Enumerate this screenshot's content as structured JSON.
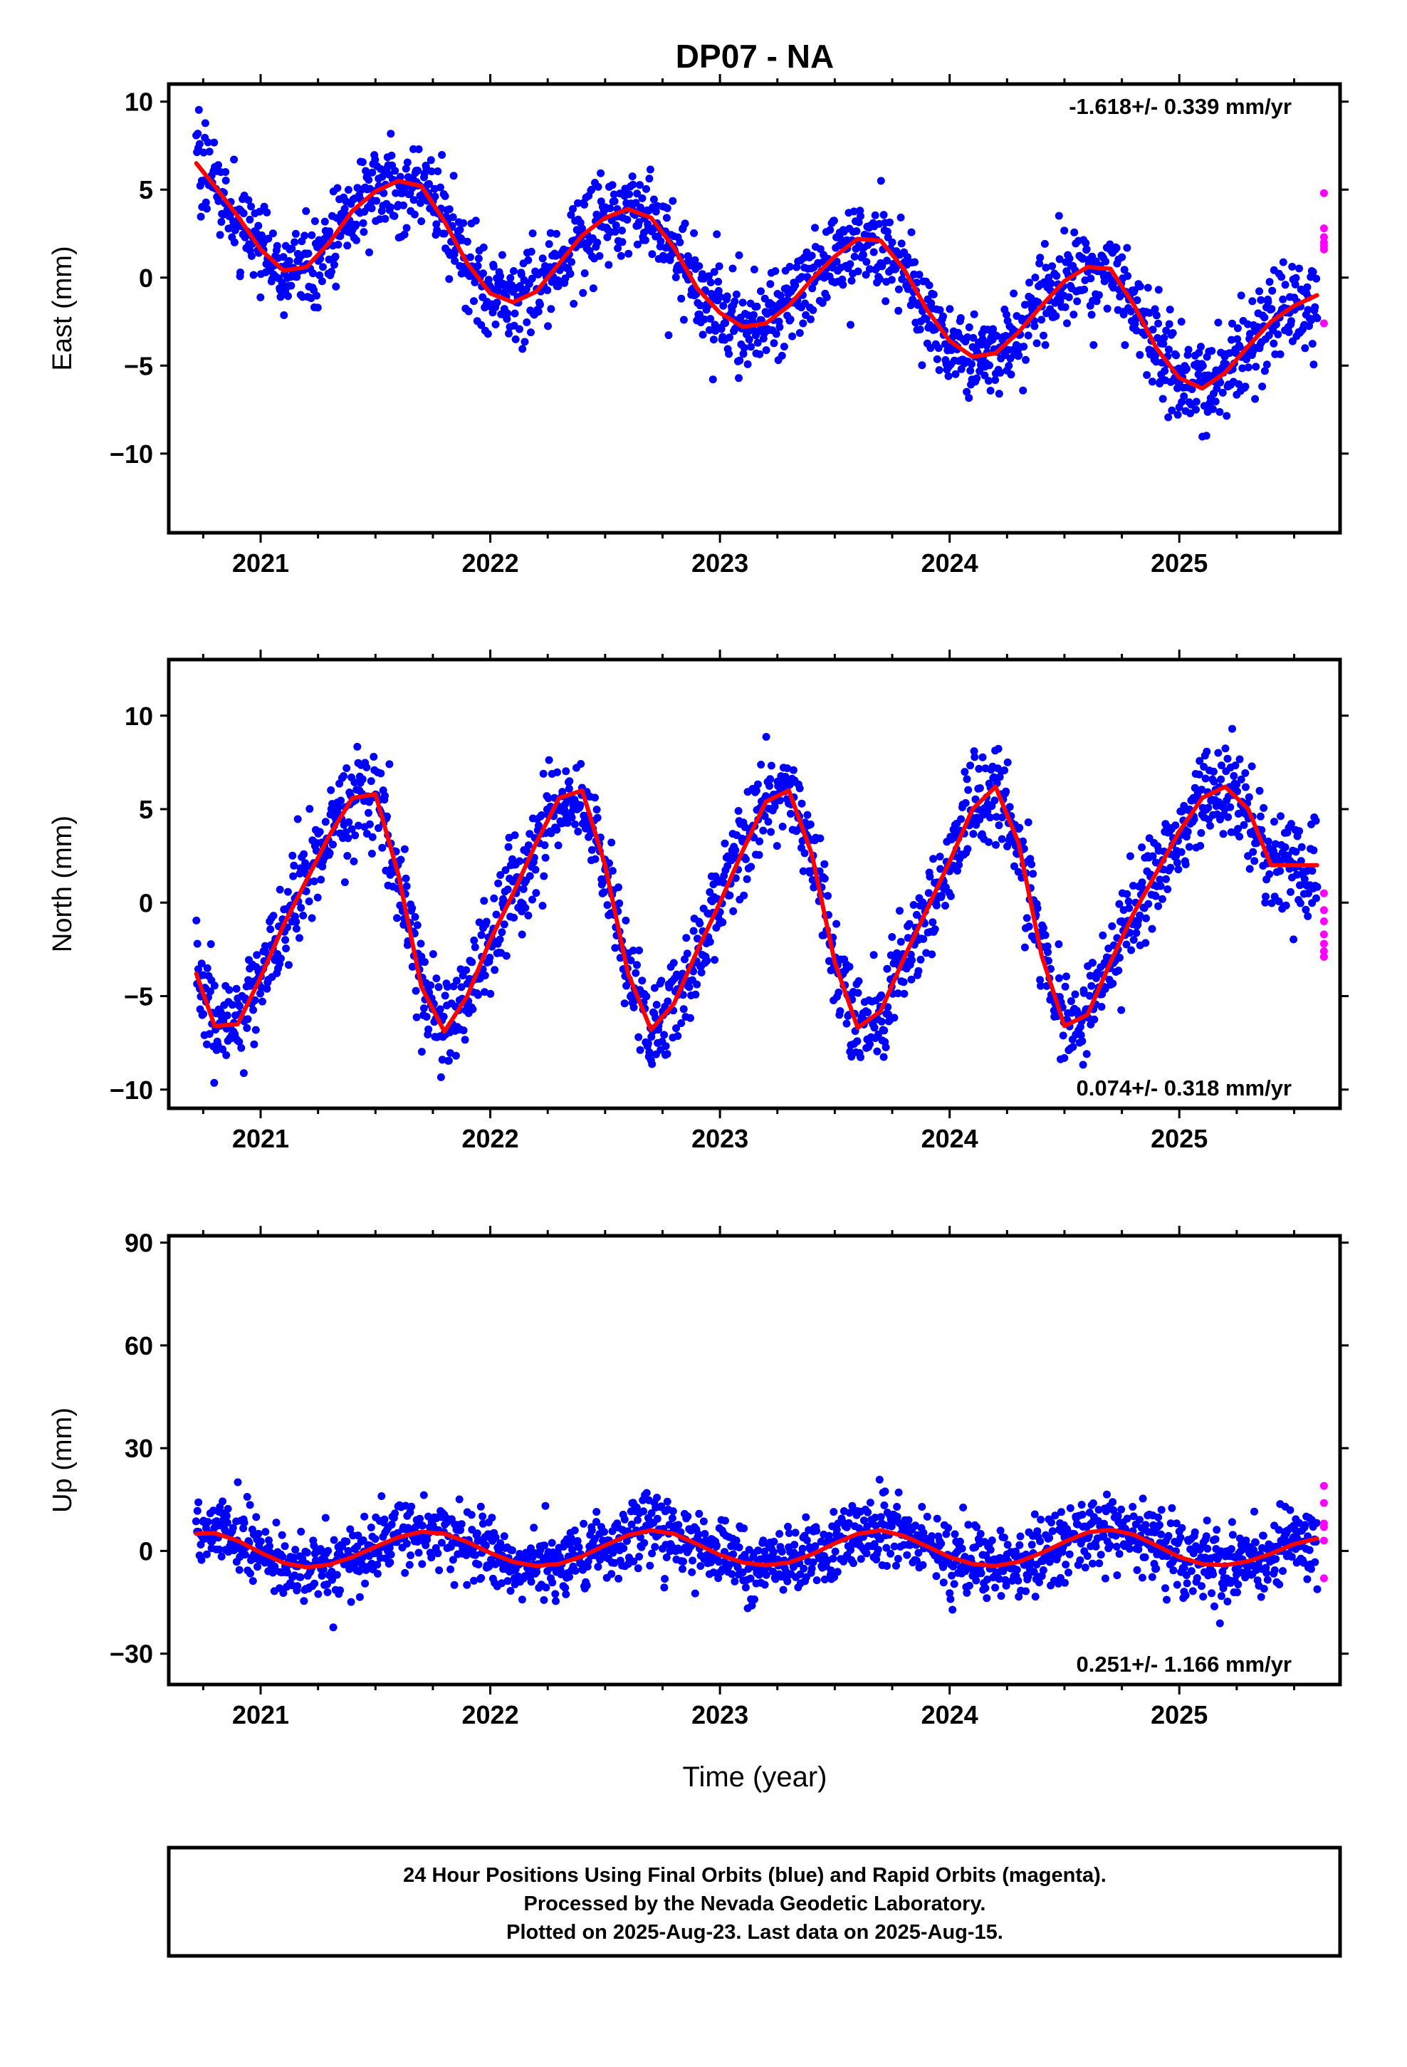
{
  "page_title": "DP07 - NA",
  "colors": {
    "final_orbits": "#0000ff",
    "rapid_orbits": "#ff00ff",
    "model_fit": "#ff0000",
    "frame": "#000000"
  },
  "x_axis": {
    "label": "Time (year)",
    "range": [
      2020.6,
      2025.7
    ],
    "tick_labels": [
      "2021",
      "2022",
      "2023",
      "2024",
      "2025"
    ]
  },
  "footer": {
    "line1": "24 Hour Positions Using Final Orbits (blue) and Rapid Orbits (magenta).",
    "line2": "Processed by the Nevada Geodetic Laboratory.",
    "line3": "Plotted on 2025-Aug-23. Last data on 2025-Aug-15."
  },
  "chart_data": [
    {
      "type": "scatter",
      "component": "East",
      "ylabel": "East (mm)",
      "ylim": [
        -14.5,
        11
      ],
      "yticks": [
        10,
        5,
        0,
        -5,
        -10
      ],
      "ytick_labels": [
        "10",
        "5",
        "0",
        "−5",
        "−10"
      ],
      "rate_text": "-1.618+/- 0.339 mm/yr",
      "rate_position": "top-right",
      "model": {
        "x": [
          2020.72,
          2020.8,
          2020.9,
          2021.0,
          2021.1,
          2021.2,
          2021.3,
          2021.4,
          2021.5,
          2021.6,
          2021.7,
          2021.8,
          2021.9,
          2022.0,
          2022.1,
          2022.2,
          2022.3,
          2022.4,
          2022.5,
          2022.6,
          2022.7,
          2022.8,
          2022.9,
          2023.0,
          2023.1,
          2023.2,
          2023.3,
          2023.4,
          2023.5,
          2023.6,
          2023.7,
          2023.8,
          2023.9,
          2024.0,
          2024.1,
          2024.2,
          2024.3,
          2024.4,
          2024.5,
          2024.6,
          2024.7,
          2024.8,
          2024.9,
          2025.0,
          2025.1,
          2025.2,
          2025.3,
          2025.4,
          2025.5,
          2025.6
        ],
        "y": [
          6.5,
          5.2,
          3.5,
          1.6,
          0.4,
          0.6,
          2.0,
          3.8,
          4.9,
          5.5,
          5.2,
          3.2,
          0.8,
          -0.9,
          -1.4,
          -0.8,
          0.8,
          2.4,
          3.4,
          3.9,
          3.4,
          1.7,
          -0.6,
          -2.0,
          -2.8,
          -2.6,
          -1.6,
          -0.1,
          1.2,
          2.2,
          2.1,
          0.5,
          -1.8,
          -3.6,
          -4.5,
          -4.3,
          -3.1,
          -1.6,
          -0.2,
          0.6,
          0.5,
          -1.5,
          -4.0,
          -5.7,
          -6.3,
          -5.4,
          -3.9,
          -2.5,
          -1.6,
          -1.0
        ]
      },
      "rapid_points": {
        "x": [
          2025.63,
          2025.63,
          2025.63,
          2025.63,
          2025.63,
          2025.63,
          2025.63
        ],
        "y": [
          4.8,
          2.8,
          2.3,
          2.0,
          1.8,
          1.6,
          -2.6
        ]
      }
    },
    {
      "type": "scatter",
      "component": "North",
      "ylabel": "North (mm)",
      "ylim": [
        -11,
        13
      ],
      "yticks": [
        10,
        5,
        0,
        -5,
        -10
      ],
      "ytick_labels": [
        "10",
        "5",
        "0",
        "−5",
        "−10"
      ],
      "rate_text": "0.074+/- 0.318 mm/yr",
      "rate_position": "bottom-right",
      "model": {
        "x": [
          2020.72,
          2020.8,
          2020.9,
          2021.0,
          2021.1,
          2021.2,
          2021.3,
          2021.4,
          2021.5,
          2021.6,
          2021.7,
          2021.8,
          2021.9,
          2022.0,
          2022.1,
          2022.2,
          2022.3,
          2022.4,
          2022.5,
          2022.6,
          2022.7,
          2022.8,
          2022.9,
          2023.0,
          2023.1,
          2023.2,
          2023.3,
          2023.4,
          2023.5,
          2023.6,
          2023.7,
          2023.8,
          2023.9,
          2024.0,
          2024.1,
          2024.2,
          2024.3,
          2024.4,
          2024.5,
          2024.6,
          2024.7,
          2024.8,
          2024.9,
          2025.0,
          2025.1,
          2025.2,
          2025.3,
          2025.4,
          2025.5,
          2025.6
        ],
        "y": [
          -3.8,
          -6.6,
          -6.5,
          -4.0,
          -1.2,
          1.2,
          3.6,
          5.6,
          5.8,
          1.5,
          -4.5,
          -6.9,
          -5.0,
          -2.0,
          0.5,
          3.2,
          5.6,
          6.0,
          2.0,
          -3.8,
          -6.8,
          -5.4,
          -2.6,
          0.0,
          2.8,
          5.4,
          6.0,
          2.6,
          -3.2,
          -6.7,
          -5.8,
          -3.0,
          -0.4,
          2.2,
          5.0,
          6.2,
          3.2,
          -2.8,
          -6.6,
          -6.0,
          -3.2,
          -0.6,
          1.6,
          3.8,
          5.6,
          6.2,
          5.0,
          2.0,
          2.0,
          2.0
        ]
      },
      "rapid_points": {
        "x": [
          2025.63,
          2025.63,
          2025.63,
          2025.63,
          2025.63,
          2025.63,
          2025.63
        ],
        "y": [
          0.5,
          -0.4,
          -1.0,
          -1.7,
          -2.2,
          -2.6,
          -2.9
        ]
      }
    },
    {
      "type": "scatter",
      "component": "Up",
      "ylabel": "Up (mm)",
      "ylim": [
        -39,
        92
      ],
      "yticks": [
        90,
        60,
        30,
        0,
        -30
      ],
      "ytick_labels": [
        "90",
        "60",
        "30",
        "0",
        "−30"
      ],
      "rate_text": "0.251+/- 1.166 mm/yr",
      "rate_position": "bottom-right",
      "model": {
        "x": [
          2020.72,
          2020.8,
          2020.9,
          2021.0,
          2021.1,
          2021.2,
          2021.3,
          2021.4,
          2021.5,
          2021.6,
          2021.7,
          2021.8,
          2021.9,
          2022.0,
          2022.1,
          2022.2,
          2022.3,
          2022.4,
          2022.5,
          2022.6,
          2022.7,
          2022.8,
          2022.9,
          2023.0,
          2023.1,
          2023.2,
          2023.3,
          2023.4,
          2023.5,
          2023.6,
          2023.7,
          2023.8,
          2023.9,
          2024.0,
          2024.1,
          2024.2,
          2024.3,
          2024.4,
          2024.5,
          2024.6,
          2024.7,
          2024.8,
          2024.9,
          2025.0,
          2025.1,
          2025.2,
          2025.3,
          2025.4,
          2025.5,
          2025.6
        ],
        "y": [
          5.0,
          5.2,
          3.0,
          -0.5,
          -3.5,
          -4.8,
          -4.0,
          -1.8,
          1.2,
          4.0,
          5.6,
          5.0,
          2.6,
          -0.6,
          -3.2,
          -4.4,
          -3.8,
          -1.6,
          1.6,
          4.6,
          6.0,
          5.0,
          2.0,
          -1.2,
          -3.4,
          -4.2,
          -3.4,
          -1.0,
          2.2,
          5.0,
          6.0,
          4.4,
          1.4,
          -1.8,
          -3.8,
          -4.4,
          -3.2,
          -0.6,
          2.6,
          5.4,
          6.2,
          4.8,
          1.6,
          -1.8,
          -3.8,
          -4.2,
          -3.0,
          -0.8,
          2.0,
          3.6
        ]
      },
      "rapid_points": {
        "x": [
          2025.63,
          2025.63,
          2025.63,
          2025.63,
          2025.63,
          2025.63
        ],
        "y": [
          19,
          14,
          8,
          7,
          3,
          -8
        ]
      }
    }
  ]
}
